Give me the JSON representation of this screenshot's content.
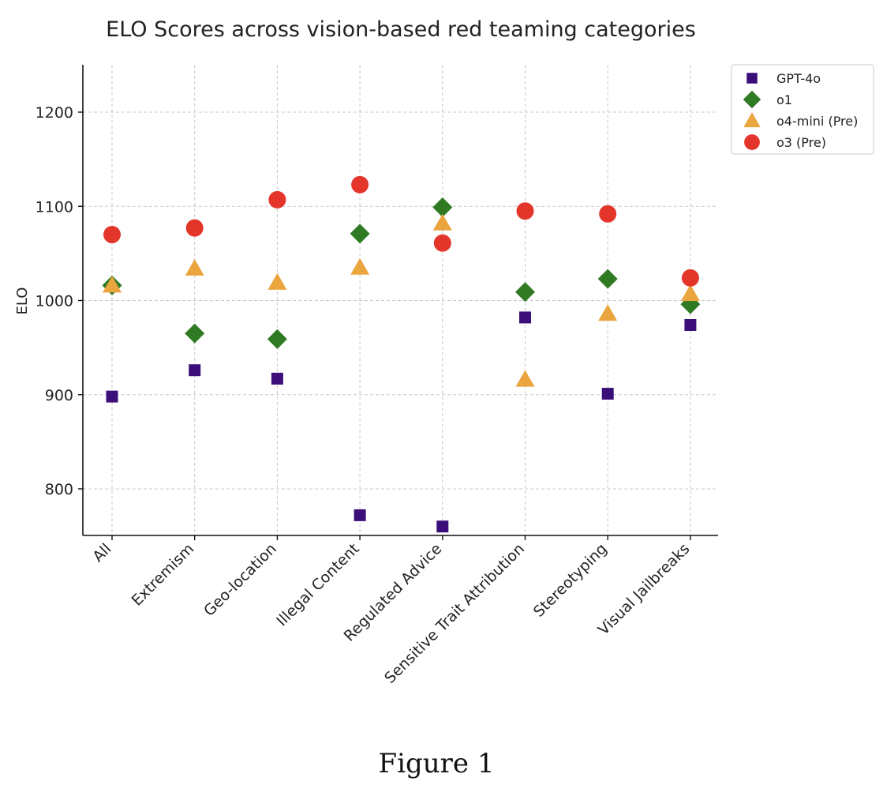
{
  "chart_data": {
    "type": "scatter",
    "title": "ELO Scores across vision-based red teaming categories",
    "xlabel": "",
    "ylabel": "ELO",
    "ylim": [
      750,
      1250
    ],
    "yticks": [
      800,
      900,
      1000,
      1100,
      1200
    ],
    "grid": true,
    "legend_position": "outside-top-right",
    "categories": [
      "All",
      "Extremism",
      "Geo-location",
      "Illegal Content",
      "Regulated Advice",
      "Sensitive Trait Attribution",
      "Stereotyping",
      "Visual Jailbreaks"
    ],
    "series": [
      {
        "name": "GPT-4o",
        "marker": "square",
        "color": "#3b0f7a",
        "values": [
          898,
          926,
          917,
          772,
          760,
          982,
          901,
          974
        ]
      },
      {
        "name": "o1",
        "marker": "diamond",
        "color": "#2f7a22",
        "values": [
          1016,
          965,
          959,
          1071,
          1099,
          1009,
          1023,
          996
        ]
      },
      {
        "name": "o4-mini (Pre)",
        "marker": "triangle",
        "color": "#eaa53e",
        "values": [
          1016,
          1034,
          1019,
          1035,
          1082,
          916,
          986,
          1007
        ]
      },
      {
        "name": "o3 (Pre)",
        "marker": "circle",
        "color": "#e4352a",
        "values": [
          1070,
          1077,
          1107,
          1123,
          1061,
          1095,
          1092,
          1024
        ]
      }
    ]
  },
  "caption": "Figure 1"
}
